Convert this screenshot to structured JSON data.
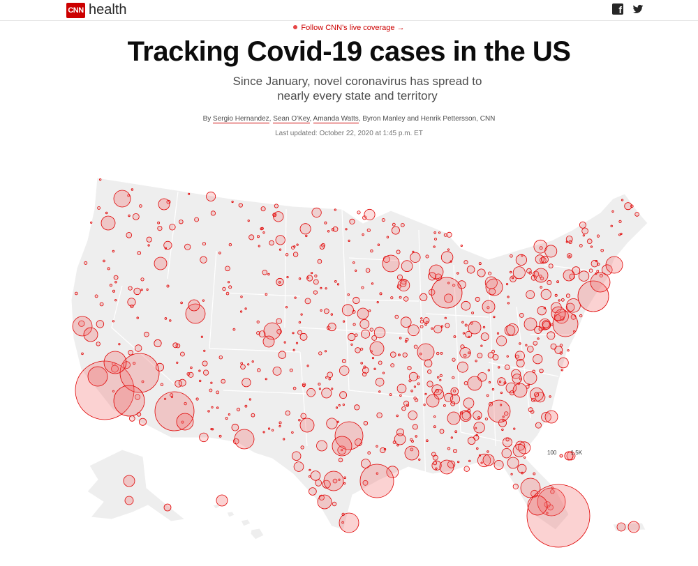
{
  "header": {
    "logo_text": "CNN",
    "section_label": "health",
    "social": [
      "facebook-icon",
      "twitter-icon"
    ]
  },
  "follow_link": "Follow CNN's live coverage →",
  "headline": "Tracking Covid-19 cases in the US",
  "subheadline": "Since January, novel coronavirus has spread to nearly every state and territory",
  "byline": {
    "prefix": "By ",
    "authors_linked": [
      "Sergio Hernandez",
      "Sean O'Key",
      "Amanda Watts"
    ],
    "rest": " Byron Manley and Henrik Pettersson, CNN"
  },
  "last_updated": "Last updated: October 22, 2020 at 1:45 p.m. ET",
  "map": {
    "land_color": "#eeeeee",
    "border_color": "#ffffff",
    "bubble_fill": "#f26b6b",
    "bubble_stroke": "#e00000",
    "legend": {
      "small_label": "100",
      "large_label": "1.5K"
    }
  },
  "colors": {
    "brand": "#cc0000",
    "accent_text": "#cc0000"
  }
}
